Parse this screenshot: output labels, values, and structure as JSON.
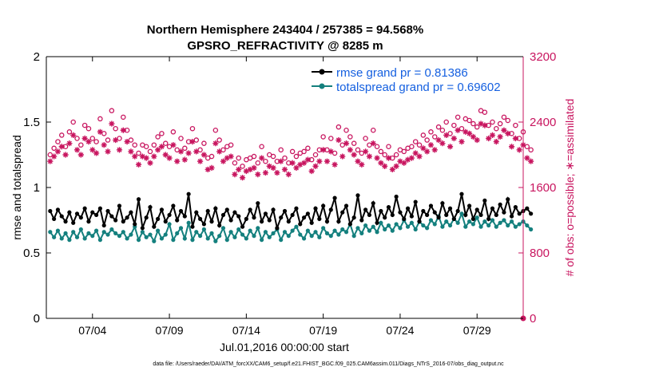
{
  "chart_data": {
    "type": "line",
    "title_line1": "Northern Hemisphere 243404 / 257385 = 94.568%",
    "title_line2": "GPSRO_REFRACTIVITY @ 8285 m",
    "xlabel": "Jul.01,2016 00:00:00 start",
    "ylabel_left": "rmse and totalspread",
    "ylabel_right": "# of obs: o=possible; ∗=assimilated",
    "x_range": [
      1,
      32
    ],
    "ylim_left": [
      0,
      2
    ],
    "ylim_right": [
      0,
      3200
    ],
    "x_ticks": [
      {
        "value": 4,
        "label": "07/04"
      },
      {
        "value": 9,
        "label": "07/09"
      },
      {
        "value": 14,
        "label": "07/14"
      },
      {
        "value": 19,
        "label": "07/19"
      },
      {
        "value": 24,
        "label": "07/24"
      },
      {
        "value": 29,
        "label": "07/29"
      }
    ],
    "y_ticks_left": [
      {
        "value": 0,
        "label": "0"
      },
      {
        "value": 0.5,
        "label": "0.5"
      },
      {
        "value": 1,
        "label": "1"
      },
      {
        "value": 1.5,
        "label": "1.5"
      },
      {
        "value": 2,
        "label": "2"
      }
    ],
    "y_ticks_right": [
      {
        "value": 0,
        "label": "0"
      },
      {
        "value": 800,
        "label": "800"
      },
      {
        "value": 1600,
        "label": "1600"
      },
      {
        "value": 2400,
        "label": "2400"
      },
      {
        "value": 3200,
        "label": "3200"
      }
    ],
    "legend": [
      {
        "name": "rmse",
        "label": "rmse grand pr = 0.81386"
      },
      {
        "name": "totalspread",
        "label": "totalspread grand pr = 0.69602"
      }
    ],
    "series": [
      {
        "name": "rmse",
        "color": "#000000",
        "start": 1.25,
        "step": 0.25,
        "values": [
          0.82,
          0.76,
          0.83,
          0.78,
          0.74,
          0.81,
          0.73,
          0.8,
          0.77,
          0.84,
          0.74,
          0.81,
          0.79,
          0.84,
          0.71,
          0.82,
          0.78,
          0.75,
          0.86,
          0.74,
          0.77,
          0.81,
          0.72,
          0.91,
          0.69,
          0.77,
          0.85,
          0.7,
          0.76,
          0.83,
          0.74,
          0.79,
          0.86,
          0.75,
          0.82,
          0.78,
          0.95,
          0.7,
          0.81,
          0.76,
          0.72,
          0.82,
          0.74,
          0.84,
          0.71,
          0.79,
          0.83,
          0.75,
          0.81,
          0.78,
          0.7,
          0.76,
          0.83,
          0.77,
          0.88,
          0.74,
          0.8,
          0.75,
          0.83,
          0.69,
          0.77,
          0.82,
          0.74,
          0.79,
          0.84,
          0.72,
          0.77,
          0.8,
          0.73,
          0.84,
          0.76,
          0.86,
          0.74,
          0.83,
          0.92,
          0.74,
          0.81,
          0.86,
          0.72,
          0.77,
          0.94,
          0.75,
          0.83,
          0.79,
          0.88,
          0.73,
          0.82,
          0.77,
          0.85,
          0.79,
          0.93,
          0.81,
          0.76,
          0.84,
          0.78,
          0.89,
          0.74,
          0.82,
          0.79,
          0.86,
          0.81,
          0.77,
          0.88,
          0.79,
          0.84,
          0.76,
          0.82,
          0.95,
          0.79,
          0.86,
          0.76,
          0.83,
          0.79,
          0.9,
          0.76,
          0.84,
          0.79,
          0.87,
          0.81,
          0.91,
          0.78,
          0.85,
          0.8,
          0.82,
          0.84,
          0.8
        ]
      },
      {
        "name": "totalspread",
        "color": "#14807e",
        "start": 1.25,
        "step": 0.25,
        "values": [
          0.66,
          0.62,
          0.67,
          0.61,
          0.65,
          0.6,
          0.66,
          0.62,
          0.68,
          0.61,
          0.65,
          0.63,
          0.67,
          0.6,
          0.66,
          0.64,
          0.68,
          0.65,
          0.63,
          0.66,
          0.61,
          0.64,
          0.7,
          0.6,
          0.66,
          0.62,
          0.64,
          0.59,
          0.67,
          0.61,
          0.64,
          0.72,
          0.6,
          0.65,
          0.69,
          0.61,
          0.73,
          0.6,
          0.66,
          0.63,
          0.68,
          0.61,
          0.65,
          0.59,
          0.63,
          0.69,
          0.6,
          0.66,
          0.62,
          0.68,
          0.64,
          0.61,
          0.67,
          0.63,
          0.69,
          0.6,
          0.66,
          0.62,
          0.65,
          0.68,
          0.6,
          0.66,
          0.63,
          0.67,
          0.7,
          0.64,
          0.61,
          0.67,
          0.63,
          0.66,
          0.62,
          0.69,
          0.65,
          0.63,
          0.67,
          0.64,
          0.68,
          0.66,
          0.72,
          0.63,
          0.69,
          0.65,
          0.71,
          0.67,
          0.7,
          0.66,
          0.73,
          0.68,
          0.71,
          0.67,
          0.72,
          0.69,
          0.75,
          0.7,
          0.73,
          0.68,
          0.74,
          0.71,
          0.69,
          0.75,
          0.72,
          0.78,
          0.7,
          0.74,
          0.71,
          0.76,
          0.73,
          0.8,
          0.7,
          0.74,
          0.72,
          0.77,
          0.7,
          0.74,
          0.71,
          0.75,
          0.7,
          0.73,
          0.75,
          0.71,
          0.74,
          0.7,
          0.72,
          0.74,
          0.71,
          0.68
        ]
      },
      {
        "name": "possible",
        "color": "#c8155f",
        "marker": "circle",
        "start": 1.25,
        "step": 0.25,
        "values": [
          2000,
          2080,
          2160,
          2240,
          2100,
          2280,
          2400,
          2200,
          2120,
          2360,
          2320,
          2200,
          2160,
          2440,
          2260,
          2180,
          2540,
          2320,
          2200,
          2460,
          2300,
          2180,
          2120,
          2020,
          2120,
          2100,
          2040,
          2120,
          2220,
          2260,
          2140,
          2100,
          2280,
          2060,
          2200,
          2080,
          2160,
          2320,
          2180,
          2060,
          2140,
          1960,
          1980,
          2300,
          2180,
          2060,
          2100,
          2120,
          1900,
          1960,
          1860,
          1940,
          1960,
          1980,
          1900,
          2100,
          1920,
          2000,
          1980,
          1920,
          2060,
          1960,
          1900,
          2040,
          1980,
          2020,
          2040,
          2080,
          1940,
          2000,
          2060,
          2220,
          2060,
          2200,
          2020,
          2340,
          2120,
          2300,
          2220,
          2140,
          2060,
          2020,
          2200,
          2120,
          2300,
          2100,
          2040,
          2000,
          2100,
          1960,
          2000,
          2060,
          2040,
          2080,
          2100,
          2160,
          2120,
          2240,
          2180,
          2280,
          2220,
          2340,
          2300,
          2400,
          2260,
          2360,
          2460,
          2320,
          2440,
          2420,
          2380,
          2340,
          2540,
          2520,
          2360,
          2400,
          2320,
          2380,
          2460,
          2420,
          2260,
          2360,
          2200,
          2280,
          2100,
          2060
        ]
      },
      {
        "name": "assimilated",
        "color": "#c8155f",
        "marker": "star",
        "start": 1.25,
        "step": 0.25,
        "values": [
          1920,
          1980,
          2040,
          2100,
          2000,
          2140,
          2240,
          2060,
          2000,
          2200,
          2160,
          2060,
          2020,
          2280,
          2120,
          2040,
          2380,
          2180,
          2060,
          2300,
          2160,
          2040,
          1980,
          1880,
          1980,
          1960,
          1900,
          1980,
          2060,
          2100,
          2000,
          1960,
          2120,
          1920,
          2040,
          1940,
          2020,
          2160,
          2040,
          1920,
          2000,
          1820,
          1840,
          2140,
          2040,
          1920,
          1960,
          1980,
          1760,
          1820,
          1720,
          1800,
          1820,
          1840,
          1760,
          1960,
          1780,
          1860,
          1840,
          1780,
          1920,
          1820,
          1760,
          1900,
          1840,
          1880,
          1900,
          1940,
          1800,
          1860,
          1920,
          2060,
          1920,
          2040,
          1880,
          2180,
          1980,
          2140,
          2060,
          2000,
          1920,
          1880,
          2040,
          1980,
          2140,
          1960,
          1900,
          1860,
          1960,
          1820,
          1860,
          1920,
          1900,
          1940,
          1960,
          2020,
          1980,
          2080,
          2040,
          2120,
          2060,
          2180,
          2140,
          2240,
          2100,
          2200,
          2300,
          2160,
          2280,
          2260,
          2220,
          2180,
          2380,
          2360,
          2200,
          2240,
          2160,
          2220,
          2300,
          2260,
          2100,
          2200,
          2060,
          2120,
          1960,
          1920
        ]
      }
    ]
  },
  "footer_text": "data file: /Users/raeder/DAI/ATM_forcXX/CAM6_setup/f.e21.FHIST_BGC.f09_025.CAM6assim.011/Diags_NTrS_2016-07/obs_diag_output.nc"
}
